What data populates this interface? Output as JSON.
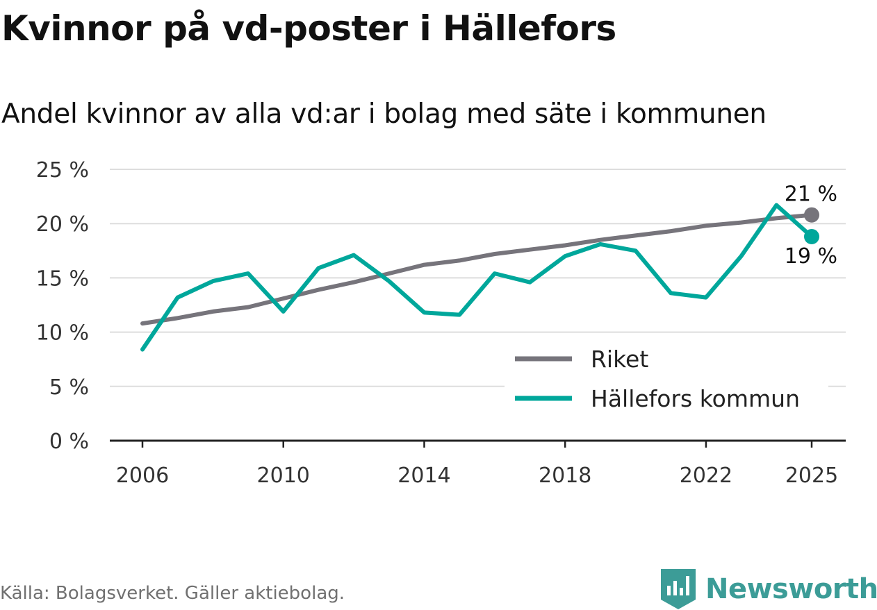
{
  "title": "Kvinnor på vd-poster i Hällefors",
  "subtitle": "Andel kvinnor av alla vd:ar i bolag med säte i kommunen",
  "source": "Källa: Bolagsverket. Gäller aktiebolag.",
  "brand": "Newsworthy",
  "colors": {
    "riket": "#76747b",
    "kommun": "#00a79b",
    "grid": "#dddddd",
    "axis": "#222222",
    "brand": "#3c9c97"
  },
  "chart_data": {
    "type": "line",
    "x": [
      2006,
      2007,
      2008,
      2009,
      2010,
      2011,
      2012,
      2013,
      2014,
      2015,
      2016,
      2017,
      2018,
      2019,
      2020,
      2021,
      2022,
      2023,
      2024,
      2025
    ],
    "series": [
      {
        "name": "Riket",
        "values": [
          10.8,
          11.3,
          11.9,
          12.3,
          13.1,
          13.9,
          14.6,
          15.4,
          16.2,
          16.6,
          17.2,
          17.6,
          18.0,
          18.5,
          18.9,
          19.3,
          19.8,
          20.1,
          20.5,
          20.8
        ]
      },
      {
        "name": "Hällefors kommun",
        "values": [
          8.4,
          13.2,
          14.7,
          15.4,
          11.9,
          15.9,
          17.1,
          14.7,
          11.8,
          11.6,
          15.4,
          14.6,
          17.0,
          18.1,
          17.5,
          13.6,
          13.2,
          17.0,
          21.7,
          18.8
        ]
      }
    ],
    "end_labels": [
      "21 %",
      "19 %"
    ],
    "ylim": [
      0,
      25
    ],
    "yticks": [
      0,
      5,
      10,
      15,
      20,
      25
    ],
    "ytick_labels": [
      "0 %",
      "5 %",
      "10 %",
      "15 %",
      "20 %",
      "25 %"
    ],
    "xticks": [
      2006,
      2010,
      2014,
      2018,
      2022,
      2025
    ],
    "xtick_labels": [
      "2006",
      "2010",
      "2014",
      "2018",
      "2022",
      "2025"
    ],
    "legend": [
      "Riket",
      "Hällefors kommun"
    ],
    "legend_position": "bottom-right",
    "grid": true,
    "xlabel": "",
    "ylabel": ""
  }
}
